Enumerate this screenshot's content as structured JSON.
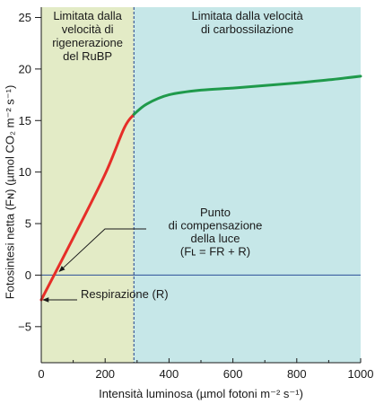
{
  "colors": {
    "region_rubp": "#e3ebc6",
    "region_carboxylation": "#c6e7e8",
    "curve_rubp": "#e62e28",
    "curve_carboxylation": "#1f9a4b",
    "zero_line": "#2a4f99",
    "divider": "#1f3f8a",
    "axis": "#1a1a1a"
  },
  "chart_data": {
    "type": "line",
    "xlabel": "Intensità luminosa (µmol fotoni m⁻² s⁻¹)",
    "ylabel": "Fotosintesi netta (Fɴ) (µmol CO₂ m⁻² s⁻¹)",
    "xlim": [
      0,
      1000
    ],
    "ylim": [
      -8.5,
      26
    ],
    "x_ticks": [
      0,
      200,
      400,
      600,
      800,
      1000
    ],
    "x_tick_labels": [
      "0",
      "200",
      "400",
      "600",
      "800",
      "1000"
    ],
    "y_ticks": [
      -5,
      0,
      5,
      10,
      15,
      20,
      25
    ],
    "y_tick_labels": [
      "−5",
      "0",
      "5",
      "10",
      "15",
      "20",
      "25"
    ],
    "regions": [
      {
        "x0": 0,
        "x1": 290,
        "label_lines": [
          "Limitata dalla",
          "velocità di",
          "rigenerazione",
          "del RuBP"
        ]
      },
      {
        "x0": 290,
        "x1": 1000,
        "label_lines": [
          "Limitata dalla velocità",
          "di carbossilazione"
        ]
      }
    ],
    "divider_x": 290,
    "zero_line_y": 0,
    "series": [
      {
        "key": "rubp",
        "points": [
          [
            0,
            -2.4
          ],
          [
            100,
            3.6
          ],
          [
            200,
            9.8
          ],
          [
            260,
            14.3
          ],
          [
            290,
            15.6
          ]
        ]
      },
      {
        "key": "carboxylation",
        "points": [
          [
            290,
            15.6
          ],
          [
            330,
            16.6
          ],
          [
            400,
            17.5
          ],
          [
            500,
            17.95
          ],
          [
            600,
            18.15
          ],
          [
            700,
            18.4
          ],
          [
            800,
            18.65
          ],
          [
            900,
            18.95
          ],
          [
            1000,
            19.3
          ]
        ]
      }
    ],
    "annotations": {
      "compensation": {
        "lines": [
          "Punto",
          "di compensazione",
          "della luce",
          "(Fʟ = FR + R)"
        ],
        "point": [
          48,
          0
        ]
      },
      "respiration": {
        "text": "Respirazione (R)",
        "point": [
          0,
          -2.4
        ]
      }
    }
  }
}
